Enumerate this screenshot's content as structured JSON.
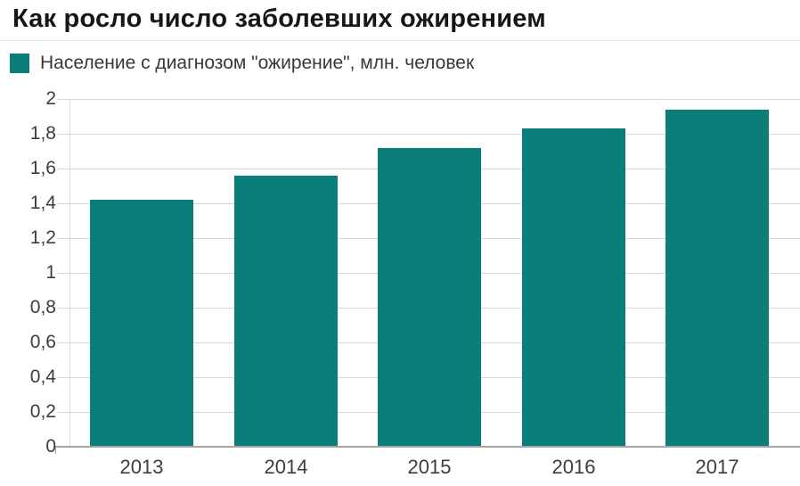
{
  "title": "Как росло число заболевших ожирением",
  "legend": {
    "label": "Население с диагнозом \"ожирение\", млн. человек",
    "swatch_color": "#0c7e79"
  },
  "chart_data": {
    "type": "bar",
    "title": "Как росло число заболевших ожирением",
    "legend_entries": [
      "Население с диагнозом \"ожирение\", млн. человек"
    ],
    "legend_position": "top-left",
    "categories": [
      "2013",
      "2014",
      "2015",
      "2016",
      "2017"
    ],
    "values": [
      1.42,
      1.56,
      1.72,
      1.83,
      1.94
    ],
    "xlabel": "",
    "ylabel": "",
    "ylim": [
      0,
      2
    ],
    "ytick_step": 0.2,
    "ytick_labels": [
      "0",
      "0,2",
      "0,4",
      "0,6",
      "0,8",
      "1",
      "1,2",
      "1,4",
      "1,6",
      "1,8",
      "2"
    ],
    "grid": true,
    "bar_color": "#0c7e79",
    "gridline_color": "#d9d9d9",
    "axis_color": "#a6a6a6",
    "label_color": "#3d3d3d"
  }
}
